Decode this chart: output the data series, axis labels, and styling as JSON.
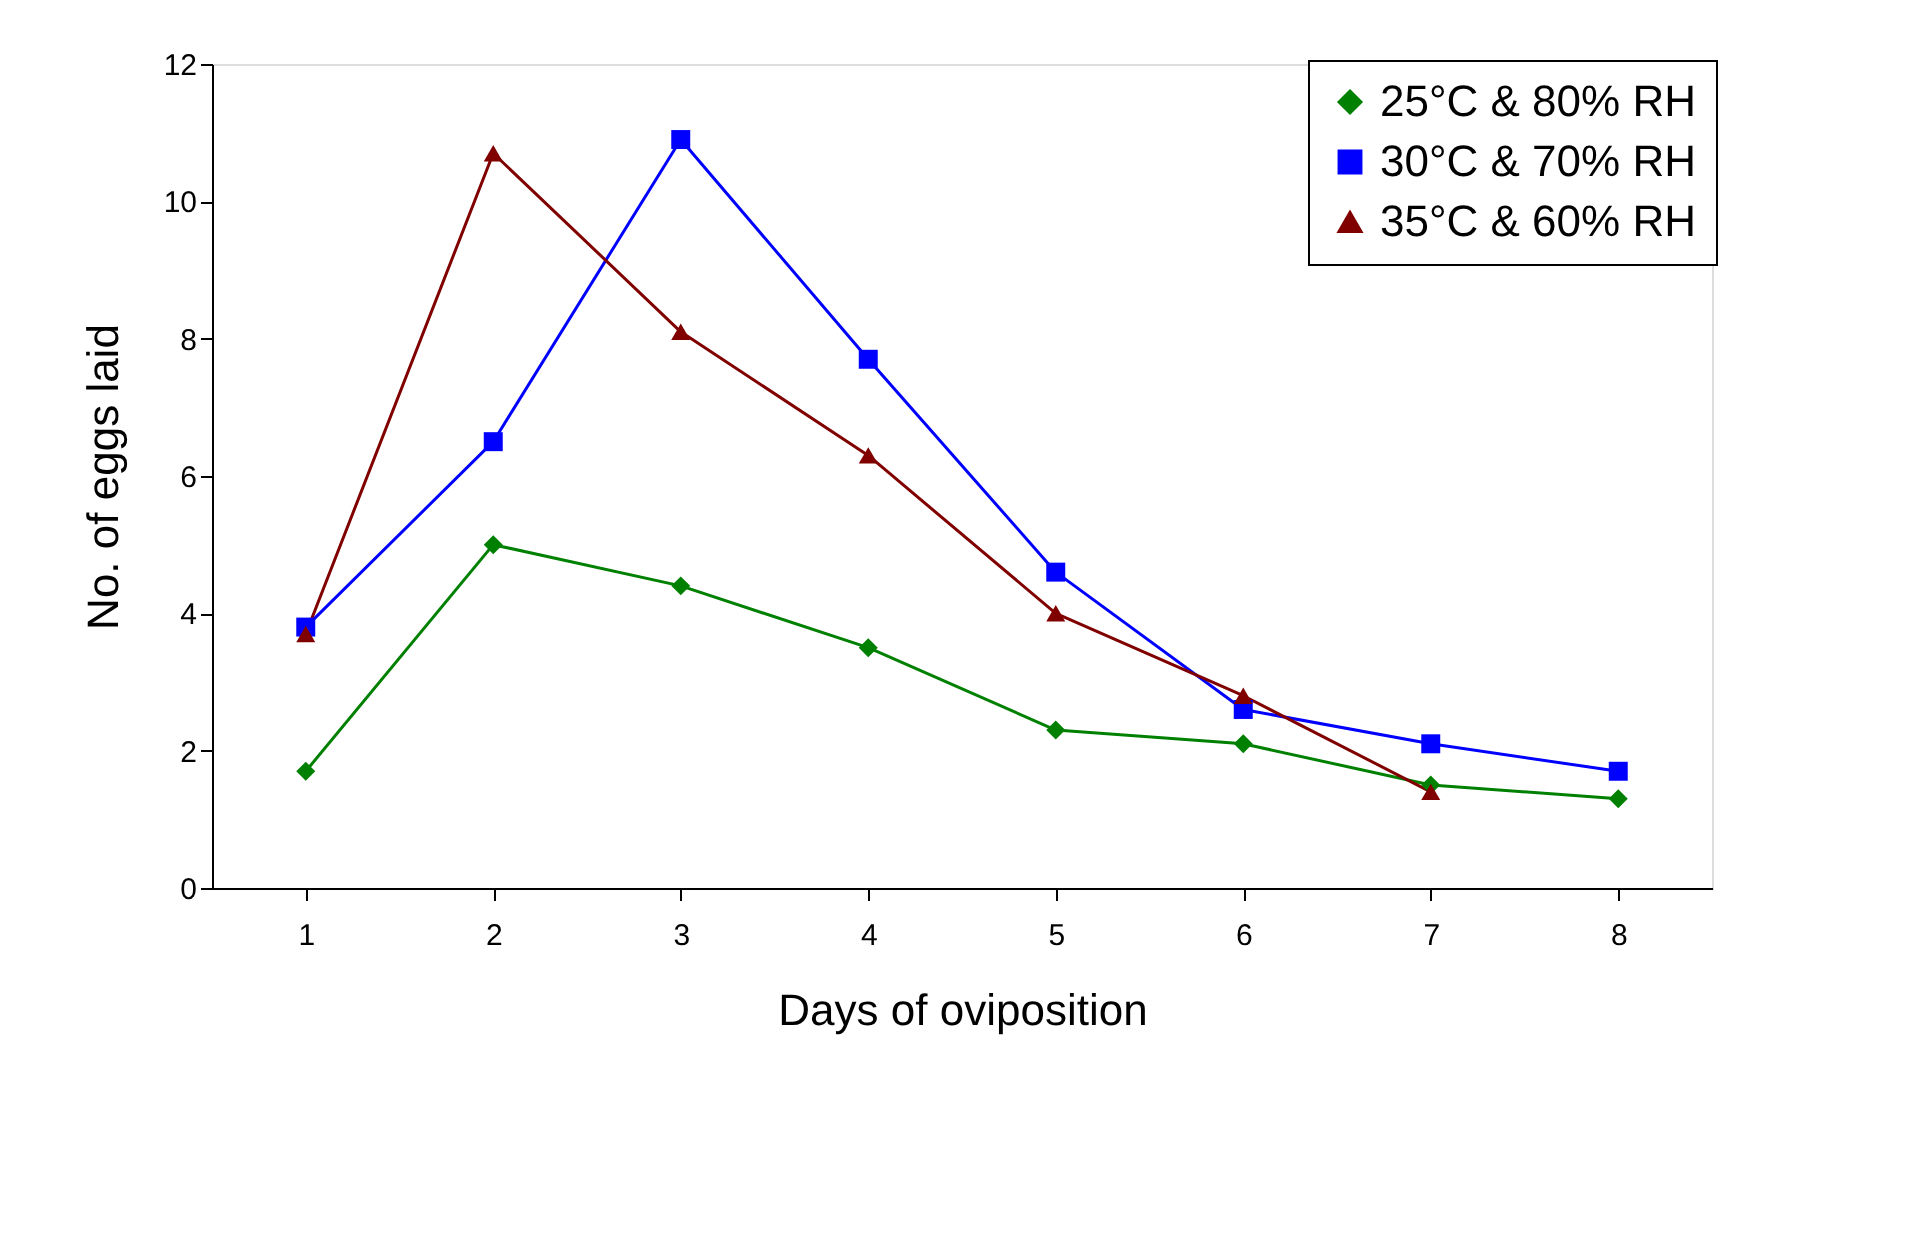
{
  "chart_data": {
    "type": "line",
    "xlabel": "Days of oviposition",
    "ylabel": "No. of eggs laid",
    "categories": [
      "1",
      "2",
      "3",
      "4",
      "5",
      "6",
      "7",
      "8"
    ],
    "ylim": [
      0,
      12
    ],
    "yticks": [
      0,
      2,
      4,
      6,
      8,
      10,
      12
    ],
    "grid": false,
    "legend": "top right",
    "series": [
      {
        "name": "25°C & 80% RH",
        "color": "#008000",
        "marker": "diamond",
        "values": [
          1.7,
          5.0,
          4.4,
          3.5,
          2.3,
          2.1,
          1.5,
          1.3
        ]
      },
      {
        "name": "30°C & 70% RH",
        "color": "#0000ff",
        "marker": "square",
        "values": [
          3.8,
          6.5,
          10.9,
          7.7,
          4.6,
          2.6,
          2.1,
          1.7
        ]
      },
      {
        "name": "35°C & 60% RH",
        "color": "#800000",
        "marker": "triangle",
        "values": [
          3.7,
          10.7,
          8.1,
          6.3,
          4.0,
          2.8,
          1.4,
          null
        ]
      }
    ]
  }
}
